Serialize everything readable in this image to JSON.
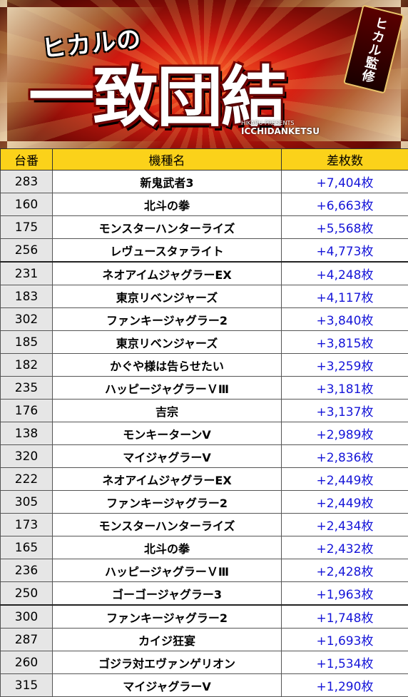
{
  "banner": {
    "subtitle": "ヒカルの",
    "title": "一致団結",
    "badge": "ヒカル監修",
    "credit_small": "HIKARU PRESENTS",
    "credit_big": "ICCHIDANKETSU"
  },
  "table": {
    "headers": [
      "台番",
      "機種名",
      "差枚数"
    ],
    "rows": [
      {
        "num": "283",
        "name": "新鬼武者3",
        "diff": "+7,404枚"
      },
      {
        "num": "160",
        "name": "北斗の拳",
        "diff": "+6,663枚"
      },
      {
        "num": "175",
        "name": "モンスターハンターライズ",
        "diff": "+5,568枚"
      },
      {
        "num": "256",
        "name": "レヴュースタァライト",
        "diff": "+4,773枚"
      },
      {
        "num": "231",
        "name": "ネオアイムジャグラーEX",
        "diff": "+4,248枚"
      },
      {
        "num": "183",
        "name": "東京リベンジャーズ",
        "diff": "+4,117枚"
      },
      {
        "num": "302",
        "name": "ファンキージャグラー2",
        "diff": "+3,840枚"
      },
      {
        "num": "185",
        "name": "東京リベンジャーズ",
        "diff": "+3,815枚"
      },
      {
        "num": "182",
        "name": "かぐや様は告らせたい",
        "diff": "+3,259枚"
      },
      {
        "num": "235",
        "name": "ハッピージャグラーＶⅢ",
        "diff": "+3,181枚"
      },
      {
        "num": "176",
        "name": "吉宗",
        "diff": "+3,137枚"
      },
      {
        "num": "138",
        "name": "モンキーターンⅤ",
        "diff": "+2,989枚"
      },
      {
        "num": "320",
        "name": "マイジャグラーⅤ",
        "diff": "+2,836枚"
      },
      {
        "num": "222",
        "name": "ネオアイムジャグラーEX",
        "diff": "+2,449枚"
      },
      {
        "num": "305",
        "name": "ファンキージャグラー2",
        "diff": "+2,449枚"
      },
      {
        "num": "173",
        "name": "モンスターハンターライズ",
        "diff": "+2,434枚"
      },
      {
        "num": "165",
        "name": "北斗の拳",
        "diff": "+2,432枚"
      },
      {
        "num": "236",
        "name": "ハッピージャグラーＶⅢ",
        "diff": "+2,428枚"
      },
      {
        "num": "250",
        "name": "ゴーゴージャグラー3",
        "diff": "+1,963枚"
      },
      {
        "num": "300",
        "name": "ファンキージャグラー2",
        "diff": "+1,748枚"
      },
      {
        "num": "287",
        "name": "カイジ狂宴",
        "diff": "+1,693枚"
      },
      {
        "num": "260",
        "name": "ゴジラ対エヴァンゲリオン",
        "diff": "+1,534枚"
      },
      {
        "num": "315",
        "name": "マイジャグラーⅤ",
        "diff": "+1,290枚"
      }
    ]
  }
}
